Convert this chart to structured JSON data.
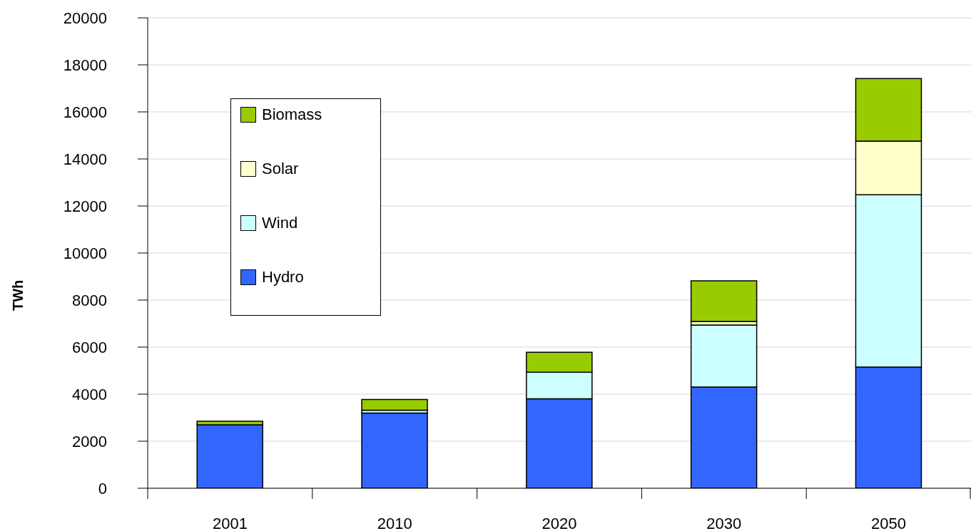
{
  "chart_data": {
    "type": "bar",
    "stacked": true,
    "ylabel": "TWh",
    "categories": [
      "2001",
      "2010",
      "2020",
      "2030",
      "2050"
    ],
    "series": [
      {
        "name": "Hydro",
        "color": "#3366ff",
        "values": [
          2700,
          3200,
          3800,
          4300,
          5150
        ]
      },
      {
        "name": "Wind",
        "color": "#ccffff",
        "values": [
          0,
          120,
          1130,
          2640,
          7330
        ]
      },
      {
        "name": "Solar",
        "color": "#ffffcc",
        "values": [
          0,
          0,
          0,
          150,
          2280
        ]
      },
      {
        "name": "Biomass",
        "color": "#99cc00",
        "values": [
          150,
          450,
          850,
          1730,
          2660
        ]
      }
    ],
    "ylim": [
      0,
      20000
    ],
    "yticks": [
      0,
      2000,
      4000,
      6000,
      8000,
      10000,
      12000,
      14000,
      16000,
      18000,
      20000
    ],
    "grid": "y",
    "legend": "top left"
  }
}
